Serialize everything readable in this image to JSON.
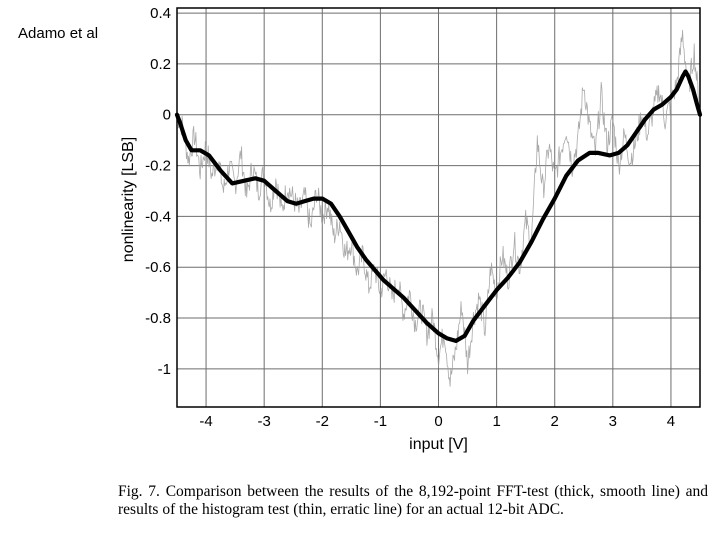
{
  "author_label": "Adamo et al",
  "caption": "Fig. 7.   Comparison between the results of the 8,192-point FFT-test (thick, smooth line) and results of the histogram test (thin, erratic line) for an actual 12-bit ADC.",
  "chart_data": {
    "type": "line",
    "xlabel": "input [V]",
    "ylabel": "nonlinearity [LSB]",
    "xlim": [
      -4.5,
      4.5
    ],
    "ylim": [
      -1.15,
      0.42
    ],
    "x_ticks": [
      -4,
      -3,
      -2,
      -1,
      0,
      1,
      2,
      3,
      4
    ],
    "y_ticks": [
      0.4,
      0.2,
      0,
      -0.2,
      -0.4,
      -0.6,
      -0.8,
      -1
    ],
    "x_tick_labels": [
      "-4",
      "-3",
      "-2",
      "-1",
      "0",
      "1",
      "2",
      "3",
      "4"
    ],
    "y_tick_labels": [
      "0.4",
      "0.2",
      "0",
      "-0.2",
      "-0.4",
      "-0.6",
      "-0.8",
      "-1"
    ],
    "grid": true,
    "series": [
      {
        "name": "histogram test (thin, erratic line)",
        "style": "thin",
        "color": "#9a9a9a",
        "x": [
          -4.5,
          -4.4,
          -4.3,
          -4.2,
          -4.1,
          -4.0,
          -3.9,
          -3.8,
          -3.7,
          -3.6,
          -3.5,
          -3.4,
          -3.3,
          -3.2,
          -3.1,
          -3.0,
          -2.9,
          -2.8,
          -2.7,
          -2.6,
          -2.5,
          -2.4,
          -2.3,
          -2.2,
          -2.1,
          -2.0,
          -1.9,
          -1.8,
          -1.7,
          -1.6,
          -1.5,
          -1.4,
          -1.3,
          -1.2,
          -1.1,
          -1.0,
          -0.9,
          -0.8,
          -0.7,
          -0.6,
          -0.5,
          -0.4,
          -0.3,
          -0.2,
          -0.1,
          0.0,
          0.1,
          0.2,
          0.3,
          0.4,
          0.5,
          0.6,
          0.7,
          0.8,
          0.9,
          1.0,
          1.1,
          1.2,
          1.3,
          1.4,
          1.5,
          1.6,
          1.7,
          1.8,
          1.9,
          2.0,
          2.1,
          2.2,
          2.3,
          2.4,
          2.5,
          2.6,
          2.7,
          2.8,
          2.9,
          3.0,
          3.1,
          3.2,
          3.3,
          3.4,
          3.5,
          3.6,
          3.7,
          3.8,
          3.9,
          4.0,
          4.1,
          4.2,
          4.3,
          4.4,
          4.5
        ],
        "y": [
          0.0,
          -0.05,
          -0.18,
          -0.08,
          -0.22,
          -0.12,
          -0.24,
          -0.17,
          -0.3,
          -0.2,
          -0.28,
          -0.15,
          -0.32,
          -0.2,
          -0.3,
          -0.22,
          -0.36,
          -0.25,
          -0.38,
          -0.28,
          -0.33,
          -0.38,
          -0.32,
          -0.45,
          -0.3,
          -0.4,
          -0.35,
          -0.48,
          -0.42,
          -0.55,
          -0.5,
          -0.62,
          -0.55,
          -0.68,
          -0.6,
          -0.7,
          -0.62,
          -0.72,
          -0.66,
          -0.78,
          -0.7,
          -0.82,
          -0.76,
          -0.86,
          -0.8,
          -0.95,
          -0.85,
          -1.05,
          -0.92,
          -0.75,
          -0.98,
          -0.8,
          -0.72,
          -0.85,
          -0.6,
          -0.7,
          -0.55,
          -0.65,
          -0.5,
          -0.6,
          -0.42,
          -0.5,
          -0.1,
          -0.3,
          -0.12,
          -0.25,
          -0.15,
          -0.05,
          -0.2,
          -0.1,
          0.12,
          -0.05,
          -0.15,
          0.08,
          -0.12,
          -0.02,
          -0.2,
          -0.08,
          -0.18,
          -0.1,
          0.0,
          -0.08,
          0.02,
          0.1,
          -0.02,
          0.05,
          0.12,
          0.32,
          0.1,
          0.25,
          0.0
        ]
      },
      {
        "name": "8,192-point FFT-test (thick, smooth line)",
        "style": "thick",
        "color": "#000000",
        "x": [
          -4.5,
          -4.45,
          -4.35,
          -4.25,
          -4.1,
          -3.95,
          -3.75,
          -3.55,
          -3.35,
          -3.15,
          -3.0,
          -2.8,
          -2.6,
          -2.45,
          -2.3,
          -2.15,
          -2.0,
          -1.85,
          -1.7,
          -1.55,
          -1.4,
          -1.25,
          -1.1,
          -0.95,
          -0.8,
          -0.6,
          -0.4,
          -0.2,
          0.0,
          0.15,
          0.3,
          0.45,
          0.6,
          0.8,
          1.0,
          1.2,
          1.4,
          1.6,
          1.8,
          2.0,
          2.2,
          2.4,
          2.6,
          2.75,
          2.95,
          3.1,
          3.25,
          3.4,
          3.55,
          3.7,
          3.85,
          4.0,
          4.1,
          4.2,
          4.25,
          4.3,
          4.38,
          4.45,
          4.5
        ],
        "y": [
          0.0,
          -0.03,
          -0.1,
          -0.14,
          -0.14,
          -0.16,
          -0.22,
          -0.27,
          -0.26,
          -0.25,
          -0.26,
          -0.3,
          -0.34,
          -0.35,
          -0.34,
          -0.33,
          -0.33,
          -0.35,
          -0.4,
          -0.46,
          -0.52,
          -0.57,
          -0.61,
          -0.65,
          -0.68,
          -0.72,
          -0.77,
          -0.82,
          -0.86,
          -0.88,
          -0.89,
          -0.87,
          -0.81,
          -0.75,
          -0.69,
          -0.64,
          -0.58,
          -0.5,
          -0.41,
          -0.33,
          -0.24,
          -0.18,
          -0.15,
          -0.15,
          -0.16,
          -0.15,
          -0.12,
          -0.07,
          -0.02,
          0.02,
          0.04,
          0.07,
          0.1,
          0.15,
          0.17,
          0.15,
          0.1,
          0.04,
          0.0
        ]
      }
    ]
  }
}
